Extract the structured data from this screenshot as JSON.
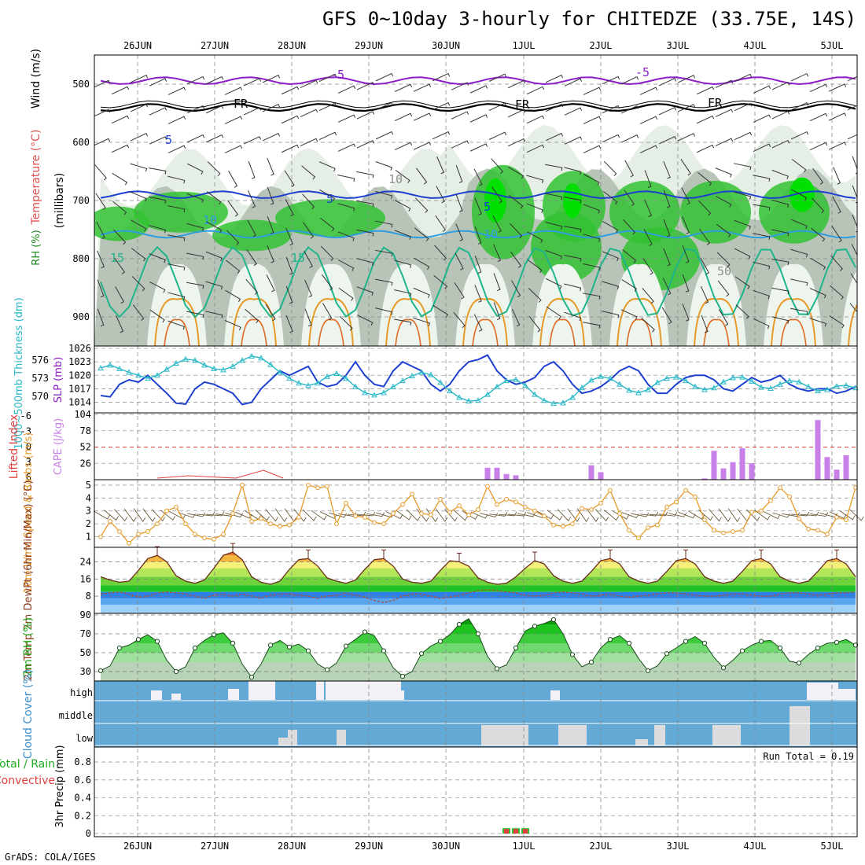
{
  "title": "GFS 0~10day 3-hourly for CHITEDZE (33.75E, 14S)",
  "footer": "GrADS: COLA/IGES",
  "colors": {
    "rh_green": "#31c331",
    "rh_bright": "#00e000",
    "gray": "#b9c4b9",
    "gray_light": "#e6efe6",
    "purple": "#8c1cc8",
    "blue": "#1e40d0",
    "blue_light": "#2e9ee0",
    "teal": "#1eb48c",
    "orange": "#e69a28",
    "cyan": "#2ab8c8",
    "cape_bar": "#c97fe8",
    "cloud": "#63a9d6",
    "cloud_clear": "#f4f0f8",
    "dashed_red": "#e04040"
  },
  "chart_data": [
    {
      "type": "heatmap",
      "panel": "upper-air",
      "ylabel_parts": [
        "RH (%)",
        "Temperature (°C)",
        "Wind (m/s)"
      ],
      "yaxis_label": "(millibars)",
      "y_ticks": [
        500,
        600,
        700,
        800,
        900
      ],
      "ylim": [
        450,
        950
      ],
      "contour_labels": [
        "5",
        "FR",
        "5",
        "10",
        "15",
        "-5",
        "FR",
        "5",
        "10",
        "15",
        "-5",
        "FR",
        "10",
        "50"
      ],
      "dates": [
        "26JUN",
        "27JUN",
        "28JUN",
        "29JUN",
        "30JUN",
        "1JUL",
        "2JUL",
        "3JUL",
        "4JUL",
        "5JUL"
      ],
      "isotherms": [
        {
          "name": "-5",
          "p": 494
        },
        {
          "name": "FR",
          "p": 540
        },
        {
          "name": "5",
          "p": 690
        },
        {
          "name": "10",
          "p": 758
        },
        {
          "name": "15",
          "p": 840
        }
      ]
    },
    {
      "type": "line",
      "panel": "slp-thickness",
      "ylabel_left": "1000~500mb Thickness (dm)",
      "ylabel_right": "SLP (mb)",
      "thickness_ticks": [
        570,
        573,
        576
      ],
      "slp_ticks": [
        1014,
        1017,
        1020,
        1023,
        1026
      ],
      "slp_ylim": [
        1012,
        1026
      ],
      "slp": [
        1015.5,
        1015.2,
        1018.0,
        1019.0,
        1018.5,
        1020.0,
        1018.0,
        1016.0,
        1013.8,
        1013.6,
        1017.0,
        1018.5,
        1018.0,
        1017.0,
        1016.0,
        1013.5,
        1014.0,
        1017.0,
        1019.0,
        1021.0,
        1020.0,
        1021.0,
        1022.0,
        1018.5,
        1017.5,
        1018.0,
        1020.0,
        1023.0,
        1020.0,
        1018.0,
        1017.5,
        1021.0,
        1023.0,
        1022.0,
        1021.0,
        1018.0,
        1016.5,
        1018.0,
        1021.0,
        1023.0,
        1023.5,
        1024.5,
        1021.0,
        1019.0,
        1018.0,
        1018.5,
        1019.5,
        1022.0,
        1023.0,
        1021.0,
        1018.0,
        1016.0,
        1016.5,
        1017.5,
        1019.0,
        1021.0,
        1022.0,
        1021.0,
        1018.0,
        1016.0,
        1016.0,
        1018.0,
        1019.5,
        1020.0,
        1020.0,
        1019.0,
        1017.0,
        1016.5,
        1018.0,
        1019.5,
        1018.5,
        1019.0,
        1020.0,
        1018.0,
        1017.0,
        1016.5,
        1017.0,
        1017.0,
        1016.0,
        1016.5,
        1017.5
      ],
      "thickness": [
        574.7,
        575.2,
        574.6,
        574.0,
        573.5,
        573.0,
        573.5,
        574.5,
        575.5,
        576.2,
        576.0,
        575.2,
        574.6,
        574.4,
        575.0,
        576.0,
        576.7,
        576.4,
        575.3,
        574.0,
        573.0,
        572.2,
        571.8,
        572.2,
        573.3,
        573.8,
        573.0,
        571.6,
        570.6,
        570.2,
        570.6,
        571.6,
        572.6,
        573.4,
        574.0,
        573.6,
        572.3,
        570.9,
        569.8,
        569.2,
        569.3,
        570.3,
        571.6,
        572.6,
        572.8,
        571.8,
        570.3,
        569.3,
        568.8,
        568.9,
        569.8,
        571.4,
        572.7,
        573.3,
        573.0,
        572.0,
        571.0,
        570.6,
        571.1,
        572.3,
        573.0,
        573.2,
        572.6,
        571.6,
        571.1,
        571.4,
        572.4,
        573.1,
        573.2,
        572.5,
        571.5,
        571.3,
        572.0,
        572.6,
        572.4,
        571.6,
        570.9,
        571.1,
        571.7,
        571.8,
        571.4
      ]
    },
    {
      "type": "bar",
      "panel": "cape-lifted",
      "ylabel_left": "Lifted Index",
      "ylabel_right": "CAPE (J/kg)",
      "li_ticks": [
        "-6",
        "-3",
        "0",
        "3",
        "6"
      ],
      "cape_ticks": [
        26,
        52,
        78,
        104
      ],
      "cape_ylim": [
        0,
        104
      ],
      "cape": [
        0,
        0,
        0,
        0,
        0,
        0,
        0,
        0,
        0,
        0,
        0,
        0,
        0,
        0,
        0,
        0,
        0,
        0,
        0,
        0,
        0,
        0,
        0,
        0,
        0,
        0,
        0,
        0,
        0,
        0,
        0,
        0,
        0,
        0,
        0,
        0,
        0,
        0,
        0,
        0,
        0,
        19,
        19,
        9,
        7,
        0,
        0,
        0,
        0,
        0,
        0,
        0,
        23,
        12,
        0,
        0,
        0,
        0,
        0,
        0,
        0,
        0,
        0,
        17,
        0,
        0,
        0,
        0,
        0,
        0,
        0,
        0,
        0,
        0,
        0,
        0,
        0,
        0,
        0,
        0,
        0
      ],
      "cape_vals_late": [
        0,
        2,
        46,
        18,
        28,
        50,
        26,
        0,
        0,
        0,
        0,
        0,
        0,
        95,
        36,
        16,
        39,
        0
      ]
    },
    {
      "type": "line",
      "panel": "wind10m",
      "ylabel": "10m Wind Speed & Barbs (m/s)",
      "y_ticks": [
        1,
        2,
        3,
        4,
        5
      ],
      "ylim": [
        0.3,
        5.3
      ],
      "speed": [
        1.0,
        2.2,
        1.4,
        0.5,
        1.2,
        1.4,
        2.0,
        3.0,
        3.3,
        2.0,
        1.2,
        0.9,
        0.8,
        1.2,
        2.8,
        5.0,
        2.2,
        2.4,
        2.0,
        1.8,
        1.9,
        2.5,
        5.0,
        4.8,
        4.9,
        2.0,
        3.6,
        2.6,
        2.5,
        2.1,
        2.0,
        2.8,
        3.5,
        4.3,
        2.8,
        2.7,
        3.9,
        2.9,
        3.4,
        2.7,
        3.1,
        4.9,
        3.5,
        3.9,
        3.7,
        3.3,
        3.0,
        2.6,
        1.9,
        1.8,
        2.0,
        3.2,
        3.1,
        3.6,
        4.6,
        2.8,
        1.5,
        0.9,
        1.7,
        1.9,
        3.3,
        3.7,
        4.6,
        4.1,
        2.3,
        1.5,
        1.3,
        1.4,
        1.5,
        2.9,
        3.0,
        3.8,
        4.8,
        4.1,
        2.4,
        1.6,
        1.5,
        1.2,
        2.5,
        2.3,
        4.8
      ]
    },
    {
      "type": "area",
      "panel": "temp2m",
      "ylabel": "2m Temp 2m DewPt (6hr Min/Max) (°C)",
      "y_ticks": [
        8,
        16,
        24
      ],
      "ylim": [
        0,
        30
      ],
      "temp": [
        17.0,
        15.5,
        14.5,
        15.0,
        20.0,
        25.5,
        27.0,
        24.0,
        17.5,
        15.0,
        14.0,
        15.5,
        21.0,
        27.0,
        28.5,
        25.0,
        17.0,
        14.5,
        13.5,
        15.0,
        20.5,
        25.0,
        25.5,
        22.0,
        16.5,
        15.0,
        14.0,
        15.5,
        20.5,
        25.0,
        25.5,
        22.0,
        16.0,
        14.5,
        14.0,
        15.0,
        20.0,
        24.5,
        24.0,
        22.0,
        16.5,
        14.5,
        13.5,
        14.0,
        17.0,
        21.0,
        24.5,
        23.0,
        17.5,
        15.0,
        14.0,
        15.0,
        19.5,
        24.5,
        25.5,
        23.0,
        17.0,
        15.0,
        14.0,
        15.0,
        19.5,
        24.5,
        25.5,
        23.0,
        17.0,
        15.0,
        14.0,
        15.0,
        19.5,
        24.5,
        25.5,
        23.0,
        17.0,
        15.0,
        14.0,
        15.0,
        19.5,
        24.5,
        25.5,
        23.0,
        17.0
      ],
      "dewpt": [
        9.0,
        9.5,
        10.0,
        9.0,
        7.5,
        8.0,
        9.5,
        10.0,
        9.5,
        9.0,
        8.0,
        7.0,
        8.5,
        9.0,
        8.0,
        9.0,
        8.0,
        7.0,
        8.5,
        9.0,
        9.0,
        8.5,
        8.0,
        7.0,
        8.0,
        8.5,
        9.5,
        8.5,
        7.5,
        6.0,
        5.0,
        6.0,
        8.0,
        9.0,
        9.0,
        8.0,
        7.0,
        7.5,
        8.5,
        9.5,
        10.5,
        11.0,
        10.5,
        10.0,
        9.5,
        8.5,
        8.0,
        8.5,
        9.5,
        10.0,
        9.5,
        9.0,
        8.0,
        8.5,
        9.0,
        8.0,
        7.5,
        8.0,
        8.5,
        9.0,
        9.5,
        9.5,
        9.0,
        8.5,
        8.0,
        8.0,
        8.5,
        9.0,
        9.0,
        8.5,
        8.0,
        8.0,
        9.0,
        9.5,
        9.5,
        9.0,
        8.5,
        9.0,
        9.5,
        9.5,
        10.0
      ]
    },
    {
      "type": "area",
      "panel": "rh2m",
      "ylabel": "2m RH (%)",
      "y_ticks": [
        30,
        50,
        70,
        90
      ],
      "ylim": [
        20,
        90
      ],
      "rh": [
        31,
        36,
        55,
        58,
        64,
        69,
        62,
        42,
        30,
        35,
        55,
        63,
        69,
        71,
        60,
        38,
        24,
        38,
        58,
        63,
        56,
        59,
        52,
        38,
        32,
        39,
        57,
        64,
        72,
        68,
        52,
        34,
        25,
        30,
        49,
        57,
        62,
        69,
        80,
        86,
        70,
        46,
        33,
        37,
        55,
        73,
        78,
        81,
        85,
        70,
        48,
        35,
        40,
        55,
        64,
        68,
        60,
        44,
        31,
        36,
        49,
        55,
        62,
        67,
        60,
        45,
        34,
        42,
        52,
        58,
        62,
        63,
        55,
        41,
        39,
        48,
        55,
        60,
        61,
        64,
        58
      ]
    },
    {
      "type": "bar",
      "panel": "cloud-cover",
      "ylabel": "Cloud Cover (%)",
      "levels": [
        "high",
        "middle",
        "low"
      ]
    },
    {
      "type": "bar",
      "panel": "precip",
      "ylabel_parts": [
        "Total / Rain",
        "Convective",
        "3hr Precip (mm)"
      ],
      "y_ticks": [
        "0",
        "0.2",
        "0.4",
        "0.6",
        "0.8"
      ],
      "ylim": [
        0,
        0.95
      ],
      "run_total_label": "Run Total = 0.19",
      "precip_total": [
        0,
        0,
        0,
        0,
        0,
        0,
        0,
        0,
        0,
        0,
        0,
        0,
        0,
        0,
        0,
        0,
        0,
        0,
        0,
        0,
        0,
        0,
        0,
        0,
        0,
        0,
        0,
        0,
        0,
        0,
        0,
        0,
        0,
        0,
        0,
        0,
        0,
        0,
        0,
        0,
        0,
        0,
        0,
        0.06,
        0.06,
        0.06,
        0,
        0,
        0,
        0,
        0,
        0,
        0,
        0,
        0,
        0,
        0,
        0,
        0,
        0,
        0,
        0,
        0,
        0,
        0,
        0,
        0,
        0,
        0,
        0,
        0,
        0,
        0,
        0,
        0,
        0,
        0,
        0,
        0,
        0,
        0
      ]
    }
  ]
}
